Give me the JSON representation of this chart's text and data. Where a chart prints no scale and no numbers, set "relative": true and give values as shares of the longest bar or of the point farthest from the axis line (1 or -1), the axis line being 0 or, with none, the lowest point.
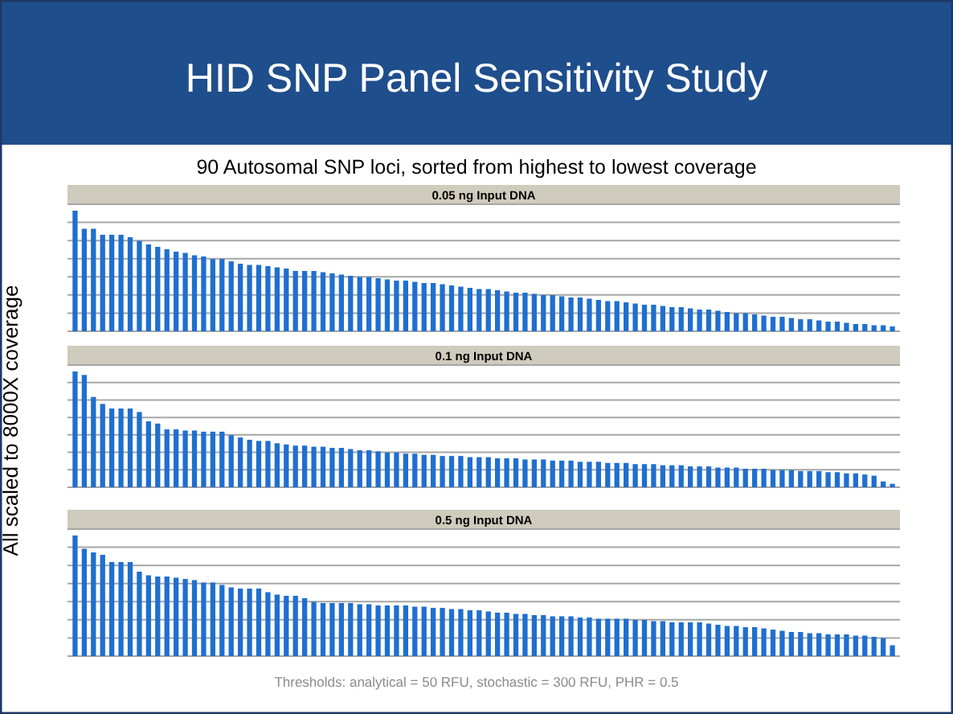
{
  "chart_data": [
    {
      "type": "bar",
      "title": "0.05 ng Input DNA",
      "relative": true,
      "grid": "y",
      "color": "#1f6fd0",
      "annotations": [
        "HID SNP Panel Sensitivity Study",
        "90 Autosomal SNP loci, sorted from highest to lowest coverage"
      ],
      "categories": [
        null,
        null,
        null,
        null,
        null,
        null,
        null,
        null,
        null,
        null,
        null,
        null,
        null,
        null,
        null,
        null,
        null,
        null,
        null,
        null,
        null,
        null,
        null,
        null,
        null,
        null,
        null,
        null,
        null,
        null,
        null,
        null,
        null,
        null,
        null,
        null,
        null,
        null,
        null,
        null,
        null,
        null,
        null,
        null,
        null,
        null,
        null,
        null,
        null,
        null,
        null,
        null,
        null,
        null,
        null,
        null,
        null,
        null,
        null,
        null,
        null,
        null,
        null,
        null,
        null,
        null,
        null,
        null,
        null,
        null,
        null,
        null,
        null,
        null,
        null,
        null,
        null,
        null,
        null,
        null,
        null,
        null,
        null,
        null,
        null,
        null,
        null,
        null,
        null,
        null
      ],
      "values": [
        1,
        0.85,
        0.85,
        0.8,
        0.8,
        0.8,
        0.78,
        0.75,
        0.72,
        0.7,
        0.68,
        0.66,
        0.65,
        0.63,
        0.62,
        0.6,
        0.6,
        0.58,
        0.56,
        0.55,
        0.55,
        0.54,
        0.53,
        0.52,
        0.5,
        0.5,
        0.5,
        0.49,
        0.48,
        0.47,
        0.46,
        0.45,
        0.45,
        0.44,
        0.43,
        0.42,
        0.42,
        0.41,
        0.4,
        0.4,
        0.39,
        0.38,
        0.37,
        0.36,
        0.35,
        0.35,
        0.34,
        0.33,
        0.32,
        0.32,
        0.31,
        0.3,
        0.3,
        0.29,
        0.28,
        0.28,
        0.27,
        0.26,
        0.25,
        0.25,
        0.24,
        0.23,
        0.22,
        0.22,
        0.21,
        0.2,
        0.2,
        0.19,
        0.18,
        0.18,
        0.17,
        0.16,
        0.15,
        0.15,
        0.14,
        0.13,
        0.12,
        0.12,
        0.11,
        0.1,
        0.1,
        0.09,
        0.08,
        0.08,
        0.07,
        0.06,
        0.06,
        0.05,
        0.05,
        0.04
      ]
    },
    {
      "type": "bar",
      "title": "0.1 ng Input DNA",
      "relative": true,
      "grid": "y",
      "color": "#1f6fd0",
      "ylabel": "All  scaled  to  8000X  coverage",
      "categories": [
        null,
        null,
        null,
        null,
        null,
        null,
        null,
        null,
        null,
        null,
        null,
        null,
        null,
        null,
        null,
        null,
        null,
        null,
        null,
        null,
        null,
        null,
        null,
        null,
        null,
        null,
        null,
        null,
        null,
        null,
        null,
        null,
        null,
        null,
        null,
        null,
        null,
        null,
        null,
        null,
        null,
        null,
        null,
        null,
        null,
        null,
        null,
        null,
        null,
        null,
        null,
        null,
        null,
        null,
        null,
        null,
        null,
        null,
        null,
        null,
        null,
        null,
        null,
        null,
        null,
        null,
        null,
        null,
        null,
        null,
        null,
        null,
        null,
        null,
        null,
        null,
        null,
        null,
        null,
        null,
        null,
        null,
        null,
        null,
        null,
        null,
        null,
        null,
        null,
        null
      ],
      "values": [
        1,
        0.97,
        0.78,
        0.72,
        0.68,
        0.68,
        0.68,
        0.65,
        0.57,
        0.55,
        0.5,
        0.5,
        0.49,
        0.49,
        0.48,
        0.48,
        0.48,
        0.45,
        0.43,
        0.41,
        0.4,
        0.4,
        0.38,
        0.37,
        0.36,
        0.36,
        0.35,
        0.35,
        0.34,
        0.34,
        0.33,
        0.32,
        0.32,
        0.31,
        0.3,
        0.3,
        0.29,
        0.29,
        0.28,
        0.28,
        0.27,
        0.27,
        0.27,
        0.26,
        0.26,
        0.26,
        0.25,
        0.25,
        0.25,
        0.24,
        0.24,
        0.24,
        0.23,
        0.23,
        0.23,
        0.22,
        0.22,
        0.22,
        0.21,
        0.21,
        0.21,
        0.2,
        0.2,
        0.2,
        0.19,
        0.19,
        0.19,
        0.18,
        0.18,
        0.18,
        0.17,
        0.17,
        0.17,
        0.16,
        0.16,
        0.16,
        0.15,
        0.15,
        0.15,
        0.14,
        0.14,
        0.14,
        0.13,
        0.13,
        0.12,
        0.12,
        0.11,
        0.1,
        0.05,
        0.03
      ]
    },
    {
      "type": "bar",
      "title": "0.5 ng Input DNA",
      "relative": true,
      "grid": "y",
      "color": "#1f6fd0",
      "annotations": [
        "Thresholds:  analytical = 50 RFU, stochastic = 300 RFU, PHR = 0.5"
      ],
      "categories": [
        null,
        null,
        null,
        null,
        null,
        null,
        null,
        null,
        null,
        null,
        null,
        null,
        null,
        null,
        null,
        null,
        null,
        null,
        null,
        null,
        null,
        null,
        null,
        null,
        null,
        null,
        null,
        null,
        null,
        null,
        null,
        null,
        null,
        null,
        null,
        null,
        null,
        null,
        null,
        null,
        null,
        null,
        null,
        null,
        null,
        null,
        null,
        null,
        null,
        null,
        null,
        null,
        null,
        null,
        null,
        null,
        null,
        null,
        null,
        null,
        null,
        null,
        null,
        null,
        null,
        null,
        null,
        null,
        null,
        null,
        null,
        null,
        null,
        null,
        null,
        null,
        null,
        null,
        null,
        null,
        null,
        null,
        null,
        null,
        null,
        null,
        null,
        null,
        null,
        null
      ],
      "values": [
        1,
        0.89,
        0.86,
        0.84,
        0.78,
        0.78,
        0.78,
        0.7,
        0.67,
        0.66,
        0.66,
        0.65,
        0.64,
        0.63,
        0.61,
        0.61,
        0.59,
        0.57,
        0.56,
        0.56,
        0.56,
        0.53,
        0.51,
        0.5,
        0.5,
        0.48,
        0.45,
        0.44,
        0.44,
        0.44,
        0.44,
        0.43,
        0.43,
        0.42,
        0.42,
        0.42,
        0.42,
        0.41,
        0.41,
        0.4,
        0.4,
        0.39,
        0.39,
        0.38,
        0.38,
        0.37,
        0.36,
        0.36,
        0.35,
        0.35,
        0.34,
        0.34,
        0.33,
        0.33,
        0.33,
        0.32,
        0.32,
        0.31,
        0.31,
        0.31,
        0.31,
        0.3,
        0.3,
        0.29,
        0.29,
        0.28,
        0.28,
        0.28,
        0.28,
        0.27,
        0.26,
        0.25,
        0.25,
        0.24,
        0.24,
        0.23,
        0.22,
        0.21,
        0.2,
        0.2,
        0.19,
        0.19,
        0.18,
        0.18,
        0.18,
        0.17,
        0.17,
        0.16,
        0.15,
        0.09
      ]
    }
  ]
}
